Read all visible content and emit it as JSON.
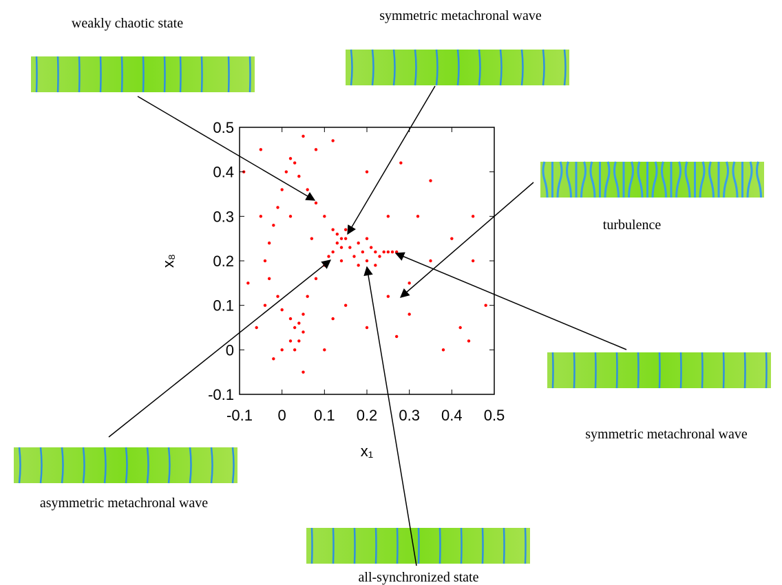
{
  "chart_data": {
    "type": "scatter",
    "x_label": "x₁",
    "y_label": "x₈",
    "xlim": [
      -0.1,
      0.5
    ],
    "ylim": [
      -0.1,
      0.5
    ],
    "xticks": [
      -0.1,
      0,
      0.1,
      0.2,
      0.3,
      0.4,
      0.5
    ],
    "yticks": [
      -0.1,
      0,
      0.1,
      0.2,
      0.3,
      0.4,
      0.5
    ],
    "color": "#ff0000",
    "x": [
      0.02,
      0.03,
      0.04,
      0.06,
      0.08,
      0.1,
      0.12,
      0.14,
      0.01,
      0.0,
      -0.01,
      -0.02,
      -0.03,
      -0.04,
      -0.03,
      -0.01,
      0.0,
      0.02,
      0.04,
      0.05,
      0.04,
      0.03,
      0.02,
      0.03,
      0.05,
      0.06,
      0.08,
      0.1,
      0.12,
      0.13,
      0.14,
      0.15,
      0.16,
      0.17,
      0.18,
      0.19,
      0.2,
      0.21,
      0.22,
      0.23,
      0.24,
      0.25,
      0.26,
      0.27,
      0.13,
      0.15,
      0.11,
      0.18,
      0.22,
      0.14,
      0.2,
      -0.05,
      0.05,
      0.12,
      0.2,
      0.28,
      0.35,
      0.32,
      0.4,
      0.45,
      0.48,
      0.42,
      0.38,
      0.3,
      0.25,
      0.2,
      0.15,
      0.1,
      0.05,
      -0.02,
      -0.06,
      -0.08,
      -0.05,
      -0.09,
      0.08,
      0.3,
      0.35,
      0.44,
      0.0,
      -0.04,
      0.07,
      0.02,
      0.25,
      0.45,
      0.12,
      0.27
    ],
    "values": [
      0.43,
      0.42,
      0.39,
      0.36,
      0.33,
      0.3,
      0.27,
      0.25,
      0.4,
      0.36,
      0.32,
      0.28,
      0.24,
      0.2,
      0.16,
      0.12,
      0.09,
      0.07,
      0.06,
      0.04,
      0.02,
      0.0,
      0.02,
      0.05,
      0.08,
      0.12,
      0.16,
      0.19,
      0.22,
      0.24,
      0.2,
      0.25,
      0.23,
      0.21,
      0.24,
      0.22,
      0.2,
      0.23,
      0.22,
      0.21,
      0.22,
      0.22,
      0.22,
      0.22,
      0.26,
      0.27,
      0.21,
      0.19,
      0.19,
      0.23,
      0.25,
      0.45,
      0.48,
      0.47,
      0.4,
      0.42,
      0.38,
      0.3,
      0.25,
      0.2,
      0.1,
      0.05,
      0.0,
      0.08,
      0.12,
      0.05,
      0.1,
      0.0,
      -0.05,
      -0.02,
      0.05,
      0.15,
      0.3,
      0.4,
      0.45,
      0.15,
      0.2,
      0.02,
      0.0,
      0.1,
      0.25,
      0.3,
      0.3,
      0.3,
      0.07,
      0.03
    ],
    "annotations": [
      {
        "text": "weakly chaotic state"
      },
      {
        "text": "symmetric metachronal wave"
      },
      {
        "text": "turbulence"
      },
      {
        "text": "symmetric metachronal wave"
      },
      {
        "text": "asymmetric metachronal wave"
      },
      {
        "text": "all-synchronized state"
      }
    ]
  }
}
